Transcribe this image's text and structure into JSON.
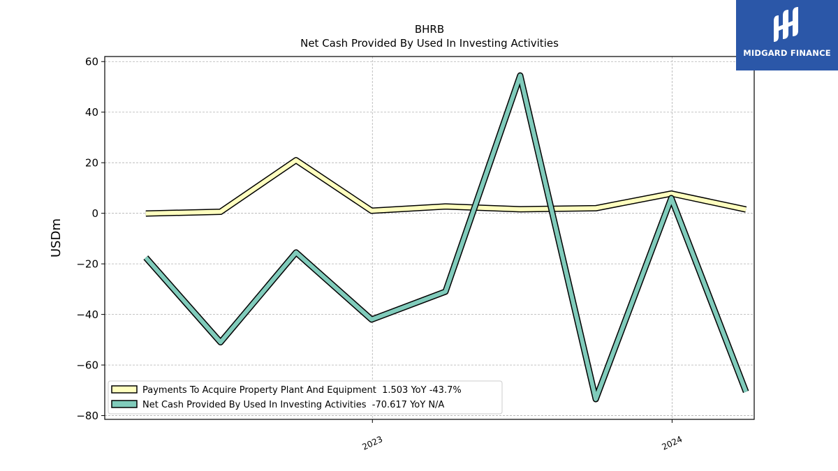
{
  "title": "BHRB",
  "subtitle": "Net Cash Provided By Used In Investing Activities",
  "logo": {
    "text": "MIDGARD FINANCE",
    "icon": "midgard-logo-icon",
    "color": "#2b57a8"
  },
  "chart_data": {
    "type": "line",
    "ylabel": "USDm",
    "xlabel": "",
    "ylim": [
      -81.5,
      62
    ],
    "yticks": [
      -80,
      -60,
      -40,
      -20,
      0,
      20,
      40,
      60
    ],
    "xlim": [
      "2022-02-09",
      "2024-04-10"
    ],
    "xticks": [
      {
        "label": "2023",
        "date": "2023-01-01"
      },
      {
        "label": "2024",
        "date": "2024-01-01"
      }
    ],
    "grid": true,
    "legend_position": "lower-left",
    "x": [
      "2022-03-31",
      "2022-06-30",
      "2022-09-30",
      "2022-12-31",
      "2023-03-31",
      "2023-06-30",
      "2023-09-30",
      "2023-12-31",
      "2024-03-31"
    ],
    "series": [
      {
        "name": "Payments To Acquire Property Plant And Equipment  1.503 YoY -43.7%",
        "color": "#ffffbf",
        "values": [
          -0.1,
          0.6,
          21.0,
          1.0,
          2.7,
          1.6,
          2.0,
          7.8,
          1.5
        ]
      },
      {
        "name": "Net Cash Provided By Used In Investing Activities  -70.617 YoY N/A",
        "color": "#80cbbb",
        "values": [
          -17.5,
          -51.0,
          -15.5,
          -42.0,
          -31.0,
          54.5,
          -73.5,
          6.0,
          -70.6
        ]
      }
    ]
  }
}
